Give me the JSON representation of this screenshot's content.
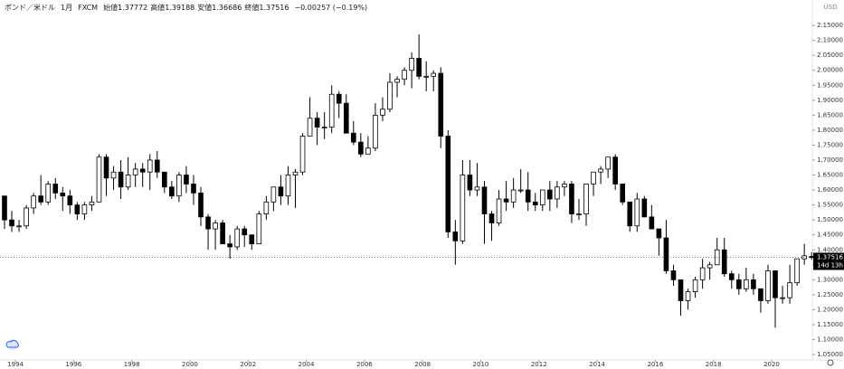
{
  "chart_data": {
    "type": "candlestick",
    "title": "ポンド／米ドル",
    "interval": "1月",
    "source": "FXCM",
    "legend": [
      {
        "label": "始値",
        "value": 1.37772
      },
      {
        "label": "高値",
        "value": 1.39188
      },
      {
        "label": "安値",
        "value": 1.36686
      },
      {
        "label": "終値",
        "value": 1.37516
      }
    ],
    "change": "−0.00257 (−0.19%)",
    "currency": "USD",
    "last_price": {
      "value": 1.37516,
      "label": "1.37516"
    },
    "countdown": "14d 13h",
    "up_color": "#ffffff",
    "down_color": "#000000",
    "border_color": "#000000",
    "x": [
      1993.625,
      1993.875,
      1994.125,
      1994.375,
      1994.625,
      1994.875,
      1995.125,
      1995.375,
      1995.625,
      1995.875,
      1996.125,
      1996.375,
      1996.625,
      1996.875,
      1997.125,
      1997.375,
      1997.625,
      1997.875,
      1998.125,
      1998.375,
      1998.625,
      1998.875,
      1999.125,
      1999.375,
      1999.625,
      1999.875,
      2000.125,
      2000.375,
      2000.625,
      2000.875,
      2001.125,
      2001.375,
      2001.625,
      2001.875,
      2002.125,
      2002.375,
      2002.625,
      2002.875,
      2003.125,
      2003.375,
      2003.625,
      2003.875,
      2004.125,
      2004.375,
      2004.625,
      2004.875,
      2005.125,
      2005.375,
      2005.625,
      2005.875,
      2006.125,
      2006.375,
      2006.625,
      2006.875,
      2007.125,
      2007.375,
      2007.625,
      2007.875,
      2008.125,
      2008.375,
      2008.625,
      2008.875,
      2009.125,
      2009.375,
      2009.625,
      2009.875,
      2010.125,
      2010.375,
      2010.625,
      2010.875,
      2011.125,
      2011.375,
      2011.625,
      2011.875,
      2012.125,
      2012.375,
      2012.625,
      2012.875,
      2013.125,
      2013.375,
      2013.625,
      2013.875,
      2014.125,
      2014.375,
      2014.625,
      2014.875,
      2015.125,
      2015.375,
      2015.625,
      2015.875,
      2016.125,
      2016.375,
      2016.625,
      2016.875,
      2017.125,
      2017.375,
      2017.625,
      2017.875,
      2018.125,
      2018.375,
      2018.625,
      2018.875,
      2019.125,
      2019.375,
      2019.625,
      2019.875,
      2020.125,
      2020.375,
      2020.625,
      2020.875,
      2021.125,
      2021.375
    ],
    "open": [
      1.58,
      1.5,
      1.48,
      1.48,
      1.54,
      1.58,
      1.56,
      1.62,
      1.59,
      1.58,
      1.55,
      1.52,
      1.55,
      1.56,
      1.71,
      1.64,
      1.66,
      1.61,
      1.65,
      1.67,
      1.66,
      1.7,
      1.66,
      1.61,
      1.58,
      1.65,
      1.62,
      1.59,
      1.51,
      1.47,
      1.49,
      1.42,
      1.41,
      1.47,
      1.45,
      1.42,
      1.52,
      1.56,
      1.61,
      1.58,
      1.65,
      1.66,
      1.78,
      1.84,
      1.81,
      1.81,
      1.92,
      1.89,
      1.79,
      1.76,
      1.72,
      1.74,
      1.85,
      1.87,
      1.96,
      1.97,
      2.0,
      2.04,
      1.98,
      1.98,
      1.99,
      1.78,
      1.46,
      1.43,
      1.65,
      1.6,
      1.61,
      1.52,
      1.49,
      1.57,
      1.56,
      1.6,
      1.6,
      1.56,
      1.55,
      1.6,
      1.57,
      1.61,
      1.62,
      1.52,
      1.52,
      1.62,
      1.66,
      1.67,
      1.71,
      1.62,
      1.56,
      1.48,
      1.57,
      1.51,
      1.47,
      1.44,
      1.33,
      1.3,
      1.23,
      1.26,
      1.3,
      1.34,
      1.35,
      1.4,
      1.32,
      1.3,
      1.27,
      1.3,
      1.27,
      1.23,
      1.33,
      1.24,
      1.24,
      1.29,
      1.37,
      1.37772
    ],
    "high": [
      1.58,
      1.53,
      1.5,
      1.55,
      1.59,
      1.65,
      1.63,
      1.64,
      1.61,
      1.6,
      1.56,
      1.56,
      1.58,
      1.72,
      1.72,
      1.68,
      1.7,
      1.71,
      1.69,
      1.69,
      1.72,
      1.73,
      1.66,
      1.63,
      1.66,
      1.68,
      1.65,
      1.61,
      1.52,
      1.5,
      1.5,
      1.45,
      1.48,
      1.48,
      1.45,
      1.53,
      1.58,
      1.61,
      1.65,
      1.68,
      1.67,
      1.79,
      1.91,
      1.86,
      1.86,
      1.95,
      1.93,
      1.92,
      1.83,
      1.79,
      1.78,
      1.89,
      1.91,
      1.99,
      1.98,
      2.01,
      2.06,
      2.12,
      2.03,
      2.0,
      2.01,
      1.8,
      1.5,
      1.7,
      1.7,
      1.69,
      1.63,
      1.53,
      1.6,
      1.63,
      1.64,
      1.67,
      1.66,
      1.59,
      1.6,
      1.63,
      1.63,
      1.63,
      1.63,
      1.57,
      1.62,
      1.66,
      1.68,
      1.71,
      1.72,
      1.62,
      1.56,
      1.59,
      1.58,
      1.55,
      1.47,
      1.5,
      1.35,
      1.3,
      1.27,
      1.31,
      1.37,
      1.36,
      1.44,
      1.44,
      1.33,
      1.32,
      1.34,
      1.32,
      1.27,
      1.35,
      1.33,
      1.28,
      1.35,
      1.37,
      1.42,
      1.39188
    ],
    "low": [
      1.47,
      1.46,
      1.46,
      1.47,
      1.52,
      1.55,
      1.55,
      1.57,
      1.53,
      1.52,
      1.5,
      1.5,
      1.53,
      1.56,
      1.58,
      1.6,
      1.57,
      1.6,
      1.61,
      1.61,
      1.6,
      1.64,
      1.59,
      1.57,
      1.56,
      1.59,
      1.55,
      1.48,
      1.4,
      1.4,
      1.42,
      1.37,
      1.4,
      1.41,
      1.4,
      1.42,
      1.5,
      1.53,
      1.55,
      1.55,
      1.54,
      1.65,
      1.78,
      1.75,
      1.77,
      1.79,
      1.84,
      1.79,
      1.75,
      1.71,
      1.72,
      1.73,
      1.83,
      1.86,
      1.91,
      1.95,
      1.94,
      1.97,
      1.93,
      1.93,
      1.74,
      1.44,
      1.35,
      1.42,
      1.58,
      1.58,
      1.42,
      1.43,
      1.48,
      1.53,
      1.54,
      1.59,
      1.53,
      1.53,
      1.53,
      1.53,
      1.54,
      1.58,
      1.49,
      1.5,
      1.48,
      1.58,
      1.62,
      1.64,
      1.6,
      1.55,
      1.46,
      1.46,
      1.51,
      1.47,
      1.38,
      1.32,
      1.28,
      1.18,
      1.2,
      1.24,
      1.27,
      1.3,
      1.35,
      1.31,
      1.27,
      1.25,
      1.26,
      1.25,
      1.19,
      1.22,
      1.14,
      1.22,
      1.22,
      1.28,
      1.35,
      1.36686
    ],
    "close": [
      1.5,
      1.48,
      1.48,
      1.54,
      1.58,
      1.56,
      1.62,
      1.59,
      1.58,
      1.55,
      1.52,
      1.55,
      1.56,
      1.71,
      1.64,
      1.66,
      1.61,
      1.65,
      1.67,
      1.66,
      1.7,
      1.66,
      1.61,
      1.58,
      1.65,
      1.62,
      1.59,
      1.51,
      1.47,
      1.49,
      1.42,
      1.41,
      1.47,
      1.45,
      1.42,
      1.52,
      1.56,
      1.61,
      1.58,
      1.65,
      1.66,
      1.78,
      1.84,
      1.81,
      1.81,
      1.92,
      1.89,
      1.79,
      1.76,
      1.72,
      1.74,
      1.85,
      1.87,
      1.96,
      1.97,
      2.0,
      2.04,
      1.98,
      1.98,
      1.99,
      1.78,
      1.46,
      1.43,
      1.65,
      1.6,
      1.61,
      1.52,
      1.49,
      1.57,
      1.56,
      1.6,
      1.6,
      1.56,
      1.55,
      1.6,
      1.57,
      1.61,
      1.62,
      1.52,
      1.52,
      1.62,
      1.66,
      1.67,
      1.71,
      1.62,
      1.56,
      1.48,
      1.57,
      1.51,
      1.47,
      1.44,
      1.33,
      1.3,
      1.23,
      1.26,
      1.3,
      1.34,
      1.35,
      1.4,
      1.32,
      1.3,
      1.27,
      1.3,
      1.27,
      1.23,
      1.33,
      1.24,
      1.24,
      1.29,
      1.37,
      1.38,
      1.37516
    ],
    "xlim": [
      1993.47,
      2021.4
    ],
    "xticks": [
      1994,
      1996,
      1998,
      2000,
      2002,
      2004,
      2006,
      2008,
      2010,
      2012,
      2014,
      2016,
      2018,
      2020
    ],
    "ylim": [
      1.032,
      2.235
    ],
    "yticks": [
      {
        "value": 1.05,
        "label": "1.05000"
      },
      {
        "value": 1.1,
        "label": "1.10000"
      },
      {
        "value": 1.15,
        "label": "1.15000"
      },
      {
        "value": 1.2,
        "label": "1.20000"
      },
      {
        "value": 1.25,
        "label": "1.25000"
      },
      {
        "value": 1.3,
        "label": "1.30000"
      },
      {
        "value": 1.35,
        "label": "1.35000"
      },
      {
        "value": 1.4,
        "label": "1.40000"
      },
      {
        "value": 1.45,
        "label": "1.45000"
      },
      {
        "value": 1.5,
        "label": "1.50000"
      },
      {
        "value": 1.55,
        "label": "1.55000"
      },
      {
        "value": 1.6,
        "label": "1.60000"
      },
      {
        "value": 1.65,
        "label": "1.65000"
      },
      {
        "value": 1.7,
        "label": "1.70000"
      },
      {
        "value": 1.75,
        "label": "1.75000"
      },
      {
        "value": 1.8,
        "label": "1.80000"
      },
      {
        "value": 1.85,
        "label": "1.85000"
      },
      {
        "value": 1.9,
        "label": "1.90000"
      },
      {
        "value": 1.95,
        "label": "1.95000"
      },
      {
        "value": 2.0,
        "label": "2.00000"
      },
      {
        "value": 2.05,
        "label": "2.05000"
      },
      {
        "value": 2.1,
        "label": "2.10000"
      },
      {
        "value": 2.15,
        "label": "2.15000"
      }
    ]
  }
}
